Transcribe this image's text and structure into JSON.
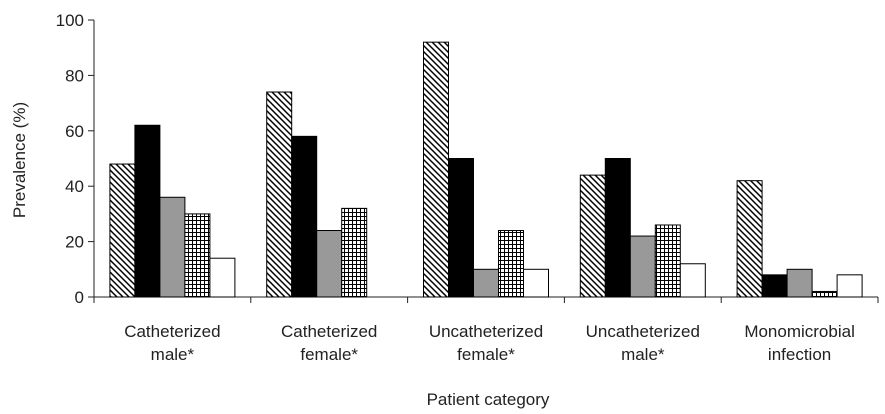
{
  "chart_data": {
    "type": "bar",
    "title": "",
    "xlabel": "Patient category",
    "ylabel": "Prevalence (%)",
    "ylim": [
      0,
      100
    ],
    "yticks": [
      0,
      20,
      40,
      60,
      80,
      100
    ],
    "categories": [
      [
        "Catheterized",
        "male*"
      ],
      [
        "Catheterized",
        "female*"
      ],
      [
        "Uncatheterized",
        "female*"
      ],
      [
        "Uncatheterized",
        "male*"
      ],
      [
        "Monomicrobial",
        "infection"
      ]
    ],
    "series": [
      {
        "fill": "diagonal-hatch",
        "values": [
          48,
          74,
          92,
          44,
          42
        ]
      },
      {
        "fill": "black",
        "color": "#000000",
        "values": [
          62,
          58,
          50,
          50,
          8
        ]
      },
      {
        "fill": "gray",
        "color": "#999999",
        "values": [
          36,
          24,
          10,
          22,
          10
        ]
      },
      {
        "fill": "crosshatch",
        "values": [
          30,
          32,
          24,
          26,
          2
        ]
      },
      {
        "fill": "white",
        "color": "#ffffff",
        "values": [
          14,
          0,
          10,
          12,
          8
        ]
      }
    ],
    "grid": false,
    "legend": "none"
  }
}
